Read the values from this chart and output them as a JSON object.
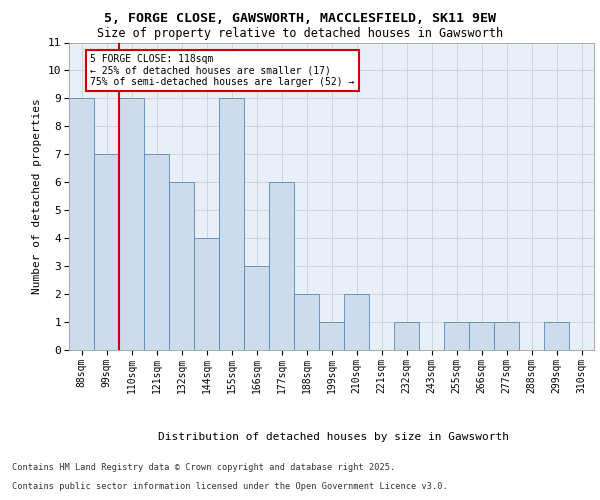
{
  "title_line1": "5, FORGE CLOSE, GAWSWORTH, MACCLESFIELD, SK11 9EW",
  "title_line2": "Size of property relative to detached houses in Gawsworth",
  "xlabel": "Distribution of detached houses by size in Gawsworth",
  "ylabel": "Number of detached properties",
  "categories": [
    "88sqm",
    "99sqm",
    "110sqm",
    "121sqm",
    "132sqm",
    "144sqm",
    "155sqm",
    "166sqm",
    "177sqm",
    "188sqm",
    "199sqm",
    "210sqm",
    "221sqm",
    "232sqm",
    "243sqm",
    "255sqm",
    "266sqm",
    "277sqm",
    "288sqm",
    "299sqm",
    "310sqm"
  ],
  "values": [
    9,
    7,
    9,
    7,
    6,
    4,
    9,
    3,
    6,
    2,
    1,
    2,
    0,
    1,
    0,
    1,
    1,
    1,
    0,
    1,
    0
  ],
  "bar_color": "#ccdcec",
  "bar_edge_color": "#5588bb",
  "reference_line_color": "#cc0000",
  "reference_line_index": 2,
  "annotation_text": "5 FORGE CLOSE: 118sqm\n← 25% of detached houses are smaller (17)\n75% of semi-detached houses are larger (52) →",
  "annotation_box_edge_color": "#cc0000",
  "ylim": [
    0,
    11
  ],
  "yticks": [
    0,
    1,
    2,
    3,
    4,
    5,
    6,
    7,
    8,
    9,
    10,
    11
  ],
  "background_color": "#e8eff7",
  "grid_color": "#c8d0dc",
  "footer_line1": "Contains HM Land Registry data © Crown copyright and database right 2025.",
  "footer_line2": "Contains public sector information licensed under the Open Government Licence v3.0."
}
